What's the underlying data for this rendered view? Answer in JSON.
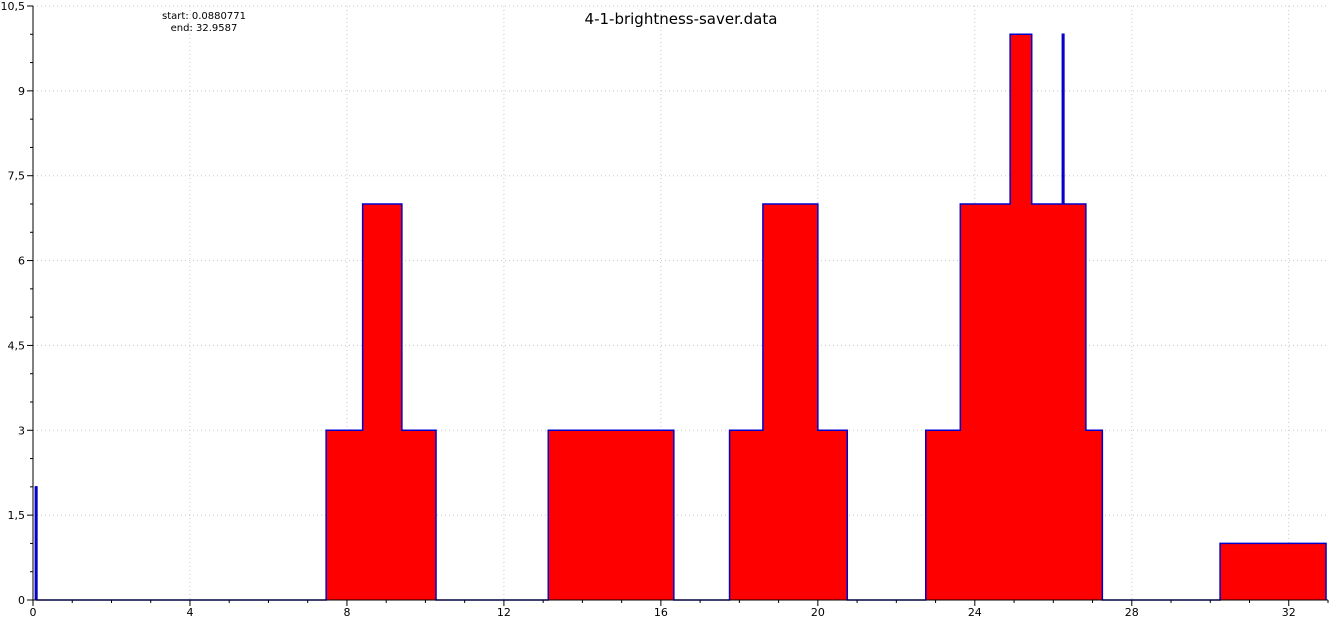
{
  "chart_data": {
    "type": "area",
    "title": "4-1-brightness-saver.data",
    "annotation": {
      "start": "start: 0.0880771",
      "end": "end: 32.9587"
    },
    "xlabel": "",
    "ylabel": "",
    "xlim": [
      0,
      33
    ],
    "ylim": [
      0,
      10.5
    ],
    "xticks": [
      0,
      4,
      8,
      12,
      16,
      20,
      24,
      28,
      32
    ],
    "yticks": [
      0,
      1.5,
      3,
      4.5,
      6,
      7.5,
      9,
      10.5
    ],
    "ytick_labels": [
      "0",
      "1,5",
      "3",
      "4,5",
      "6",
      "7,5",
      "9",
      "10,5"
    ],
    "grid": true,
    "colors": {
      "fill": "#ff0000",
      "line": "#0000cc"
    },
    "series": [
      {
        "points": [
          [
            0.06,
            0
          ],
          [
            0.06,
            2
          ],
          [
            0.1,
            2
          ],
          [
            0.1,
            0
          ],
          [
            7.47,
            0
          ],
          [
            7.47,
            3
          ],
          [
            8.4,
            3
          ],
          [
            8.4,
            7
          ],
          [
            9.4,
            7
          ],
          [
            9.4,
            3
          ],
          [
            10.27,
            3
          ],
          [
            10.27,
            0
          ],
          [
            13.13,
            0
          ],
          [
            13.13,
            3
          ],
          [
            16.33,
            3
          ],
          [
            16.33,
            0
          ],
          [
            17.75,
            0
          ],
          [
            17.75,
            3
          ],
          [
            18.6,
            3
          ],
          [
            18.6,
            7
          ],
          [
            20.0,
            7
          ],
          [
            20.0,
            3
          ],
          [
            20.75,
            3
          ],
          [
            20.75,
            0
          ],
          [
            22.75,
            0
          ],
          [
            22.75,
            3
          ],
          [
            23.63,
            3
          ],
          [
            23.63,
            7
          ],
          [
            24.9,
            7
          ],
          [
            24.9,
            10
          ],
          [
            25.45,
            10
          ],
          [
            25.45,
            7
          ],
          [
            26.23,
            7
          ],
          [
            26.23,
            10
          ],
          [
            26.27,
            10
          ],
          [
            26.27,
            7
          ],
          [
            26.83,
            7
          ],
          [
            26.83,
            3
          ],
          [
            27.25,
            3
          ],
          [
            27.25,
            0
          ],
          [
            30.25,
            0
          ],
          [
            30.25,
            1
          ],
          [
            32.95,
            1
          ],
          [
            32.95,
            0
          ]
        ]
      }
    ]
  }
}
